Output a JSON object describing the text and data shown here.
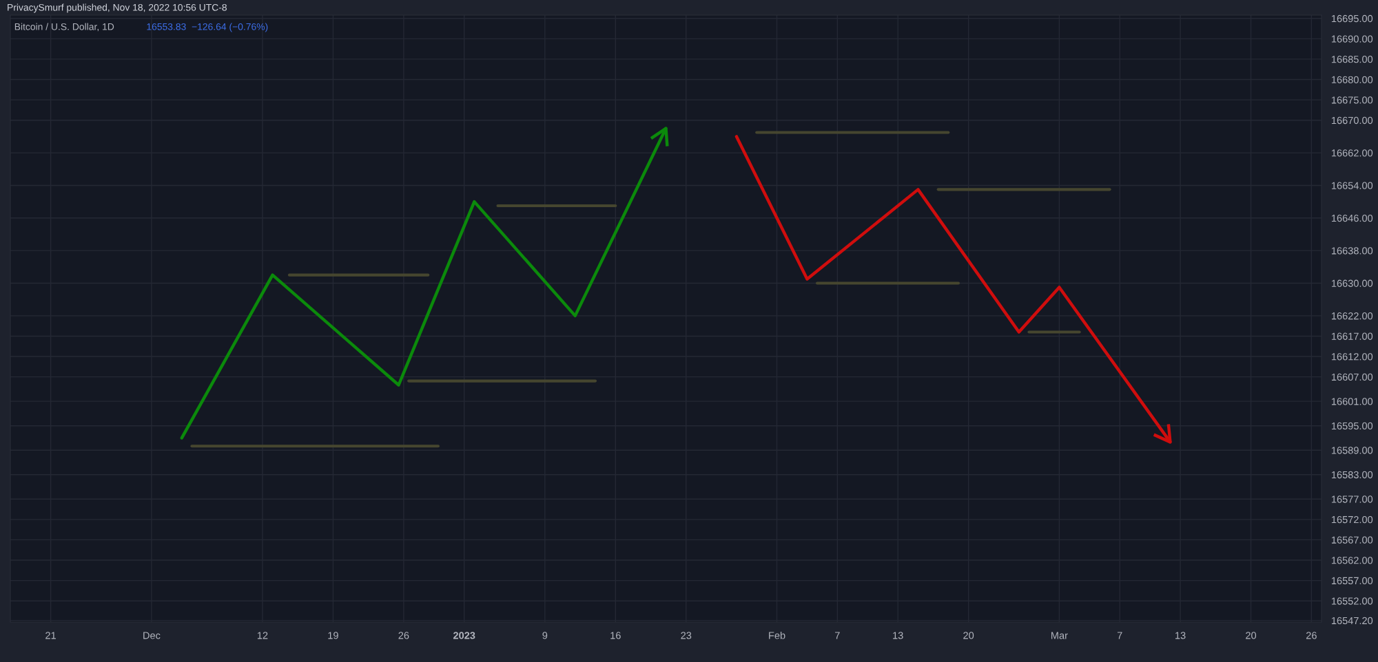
{
  "chart_data": {
    "type": "line",
    "title": "PrivacySmurf published, Nov 18, 2022 10:56 UTC-8",
    "subtitle": "Bitcoin / U.S. Dollar, 1D",
    "annotations": [
      "16553.83  −126.64 (−0.76%)"
    ],
    "series": [
      {
        "color": "#0b8a0b",
        "x": [
          "2022-12-04",
          "2022-12-13",
          "2022-12-25T12:00",
          "2023-01-02",
          "2023-01-12",
          "2023-01-21"
        ],
        "values": [
          16592,
          16632,
          16605,
          16650,
          16622,
          16668
        ]
      },
      {
        "color": "#cf0d0d",
        "x": [
          "2023-01-28",
          "2023-02-04",
          "2023-02-15",
          "2023-02-25",
          "2023-03-01",
          "2023-03-12"
        ],
        "values": [
          16666,
          16631,
          16653,
          16618,
          16629,
          16591
        ]
      },
      {
        "color": "#46462f",
        "x": [
          "2022-12-05",
          "2022-12-29T10:00"
        ],
        "values": [
          16590,
          16590
        ]
      },
      {
        "color": "#46462f",
        "x": [
          "2022-12-14T16:00",
          "2022-12-28T10:00"
        ],
        "values": [
          16632,
          16632
        ]
      },
      {
        "color": "#46462f",
        "x": [
          "2022-12-26T12:00",
          "2023-01-14"
        ],
        "values": [
          16606,
          16606
        ]
      },
      {
        "color": "#46462f",
        "x": [
          "2023-01-04T08:00",
          "2023-01-16"
        ],
        "values": [
          16649,
          16649
        ]
      },
      {
        "color": "#46462f",
        "x": [
          "2023-01-30",
          "2023-02-18"
        ],
        "values": [
          16667,
          16667
        ]
      },
      {
        "color": "#46462f",
        "x": [
          "2023-02-17",
          "2023-03-06"
        ],
        "values": [
          16653,
          16653
        ]
      },
      {
        "color": "#46462f",
        "x": [
          "2023-02-05",
          "2023-02-19"
        ],
        "values": [
          16630,
          16630
        ]
      },
      {
        "color": "#46462f",
        "x": [
          "2023-02-26",
          "2023-03-03"
        ],
        "values": [
          16618,
          16618
        ]
      }
    ],
    "xlim": [
      "2022-11-17",
      "2023-03-27"
    ],
    "xticks": [
      {
        "value": "2022-11-21",
        "label": "21"
      },
      {
        "value": "2022-12-01",
        "label": "Dec"
      },
      {
        "value": "2022-12-12",
        "label": "12"
      },
      {
        "value": "2022-12-19",
        "label": "19"
      },
      {
        "value": "2022-12-26",
        "label": "26"
      },
      {
        "value": "2023-01-01",
        "label": "2023"
      },
      {
        "value": "2023-01-09",
        "label": "9"
      },
      {
        "value": "2023-01-16",
        "label": "16"
      },
      {
        "value": "2023-01-23",
        "label": "23"
      },
      {
        "value": "2023-02-01",
        "label": "Feb"
      },
      {
        "value": "2023-02-07",
        "label": "7"
      },
      {
        "value": "2023-02-13",
        "label": "13"
      },
      {
        "value": "2023-02-20",
        "label": "20"
      },
      {
        "value": "2023-03-01",
        "label": "Mar"
      },
      {
        "value": "2023-03-07",
        "label": "7"
      },
      {
        "value": "2023-03-13",
        "label": "13"
      },
      {
        "value": "2023-03-20",
        "label": "20"
      },
      {
        "value": "2023-03-26",
        "label": "26"
      }
    ],
    "ylim": [
      16546.8,
      16695.8
    ],
    "yticks": [
      {
        "value": 16547.2,
        "label": "16547.20"
      },
      {
        "value": 16552,
        "label": "16552.00"
      },
      {
        "value": 16557,
        "label": "16557.00"
      },
      {
        "value": 16562,
        "label": "16562.00"
      },
      {
        "value": 16567,
        "label": "16567.00"
      },
      {
        "value": 16572,
        "label": "16572.00"
      },
      {
        "value": 16577,
        "label": "16577.00"
      },
      {
        "value": 16583,
        "label": "16583.00"
      },
      {
        "value": 16589,
        "label": "16589.00"
      },
      {
        "value": 16595,
        "label": "16595.00"
      },
      {
        "value": 16601,
        "label": "16601.00"
      },
      {
        "value": 16607,
        "label": "16607.00"
      },
      {
        "value": 16612,
        "label": "16612.00"
      },
      {
        "value": 16617,
        "label": "16617.00"
      },
      {
        "value": 16622,
        "label": "16622.00"
      },
      {
        "value": 16630,
        "label": "16630.00"
      },
      {
        "value": 16638,
        "label": "16638.00"
      },
      {
        "value": 16646,
        "label": "16646.00"
      },
      {
        "value": 16654,
        "label": "16654.00"
      },
      {
        "value": 16662,
        "label": "16662.00"
      },
      {
        "value": 16670,
        "label": "16670.00"
      },
      {
        "value": 16675,
        "label": "16675.00"
      },
      {
        "value": 16680,
        "label": "16680.00"
      },
      {
        "value": 16685,
        "label": "16685.00"
      },
      {
        "value": 16690,
        "label": "16690.00"
      },
      {
        "value": 16695,
        "label": "16695.00"
      }
    ],
    "grid": true,
    "legend": false,
    "marker": "none",
    "line_style": "solid"
  }
}
